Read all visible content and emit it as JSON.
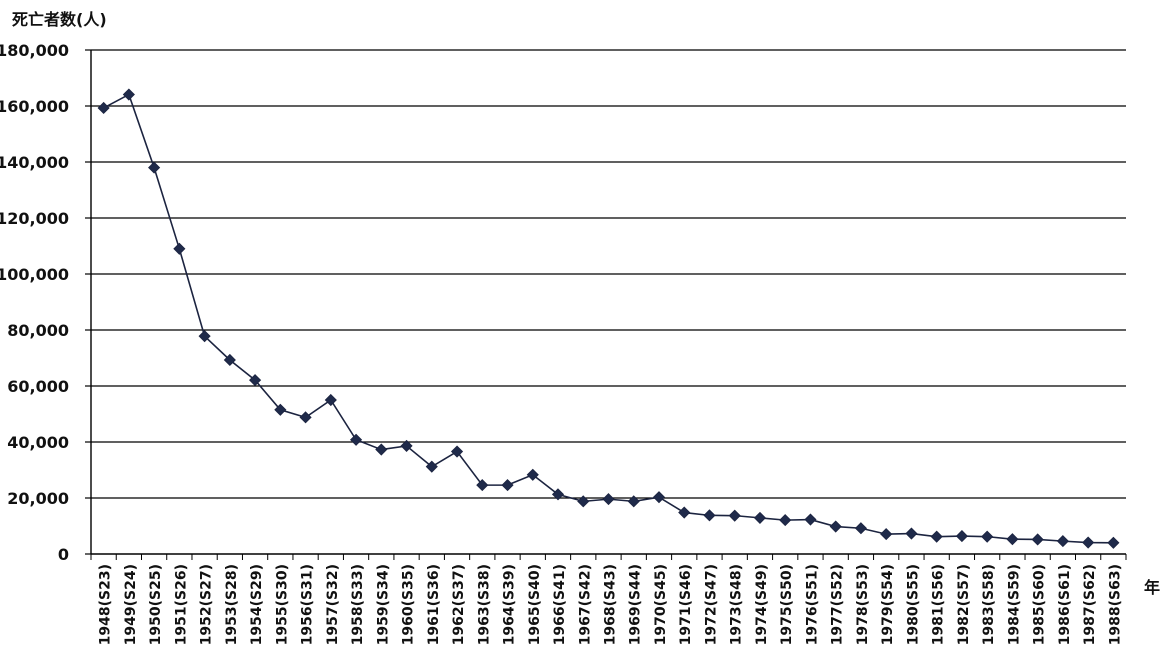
{
  "chart_data": {
    "type": "line",
    "title": "",
    "ylabel": "死亡者数(人)",
    "xlabel": "年",
    "ylim": [
      0,
      180000
    ],
    "yticks": [
      0,
      20000,
      40000,
      60000,
      80000,
      100000,
      120000,
      140000,
      160000,
      180000
    ],
    "ytick_labels": [
      "0",
      "20,000",
      "40,000",
      "60,000",
      "80,000",
      "100,000",
      "120,000",
      "140,000",
      "160,000",
      "180,000"
    ],
    "grid": "horizontal",
    "legend": "none",
    "categories": [
      "1948(S23)",
      "1949(S24)",
      "1950(S25)",
      "1951(S26)",
      "1952(S27)",
      "1953(S28)",
      "1954(S29)",
      "1955(S30)",
      "1956(S31)",
      "1957(S32)",
      "1958(S33)",
      "1959(S34)",
      "1960(S35)",
      "1961(S36)",
      "1962(S37)",
      "1963(S38)",
      "1964(S39)",
      "1965(S40)",
      "1966(S41)",
      "1967(S42)",
      "1968(S43)",
      "1969(S44)",
      "1970(S45)",
      "1971(S46)",
      "1972(S47)",
      "1973(S48)",
      "1974(S49)",
      "1975(S50)",
      "1976(S51)",
      "1977(S52)",
      "1978(S53)",
      "1979(S54)",
      "1980(S55)",
      "1981(S56)",
      "1982(S57)",
      "1983(S58)",
      "1984(S59)",
      "1985(S60)",
      "1986(S61)",
      "1987(S62)",
      "1988(S63)"
    ],
    "values": [
      159300,
      164100,
      138000,
      109000,
      77800,
      69300,
      62100,
      51500,
      48800,
      55000,
      40800,
      37300,
      38600,
      31200,
      36600,
      24600,
      24600,
      28300,
      21300,
      18800,
      19600,
      18800,
      20300,
      14800,
      13800,
      13700,
      12900,
      12100,
      12300,
      9800,
      9200,
      7100,
      7300,
      6200,
      6400,
      6200,
      5300,
      5200,
      4600,
      4100,
      4000
    ],
    "colors": {
      "line": "#1c2440",
      "marker": "#1f2a4a",
      "grid": "#000000",
      "axis": "#000000"
    }
  }
}
